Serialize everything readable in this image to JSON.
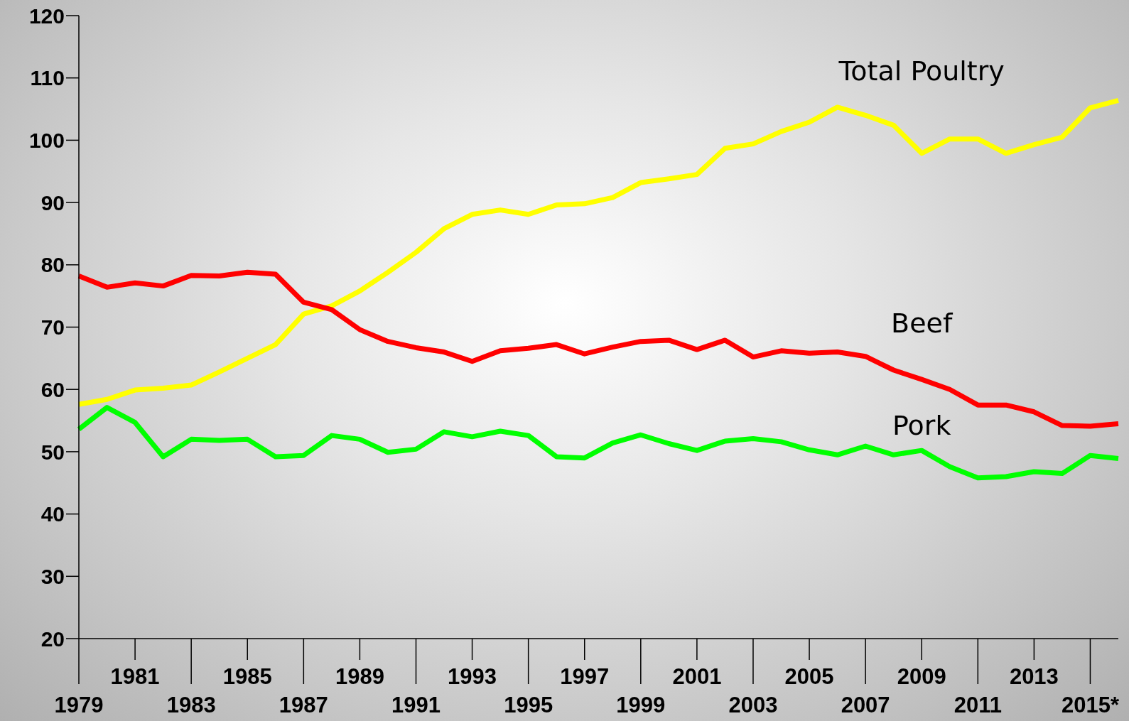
{
  "chart_data": {
    "type": "line",
    "categories": [
      "1979",
      null,
      "1981",
      null,
      "1983",
      null,
      "1985",
      null,
      "1987",
      null,
      "1989",
      null,
      "1991",
      null,
      "1993",
      null,
      "1995",
      null,
      "1997",
      null,
      "1999",
      null,
      "2001",
      null,
      "2003",
      null,
      "2005",
      null,
      "2007",
      null,
      "2009",
      null,
      "2011",
      null,
      "2013",
      null,
      "2015*",
      null
    ],
    "series": [
      {
        "name": "Total Poultry",
        "color": "#ffff00",
        "values": [
          57.6,
          58.4,
          59.9,
          60.2,
          60.7,
          62.8,
          65.0,
          67.2,
          72.1,
          73.4,
          75.8,
          78.8,
          82.0,
          85.8,
          88.1,
          88.8,
          88.1,
          89.6,
          89.8,
          90.8,
          93.2,
          93.8,
          94.5,
          98.7,
          99.4,
          101.4,
          102.9,
          105.3,
          104.0,
          102.4,
          97.9,
          100.2,
          100.2,
          97.9,
          99.3,
          100.5,
          105.2,
          106.4
        ]
      },
      {
        "name": "Beef",
        "color": "#ff0000",
        "values": [
          78.2,
          76.4,
          77.1,
          76.6,
          78.3,
          78.2,
          78.8,
          78.5,
          74.0,
          72.8,
          69.6,
          67.7,
          66.7,
          66.0,
          64.5,
          66.2,
          66.6,
          67.2,
          65.7,
          66.8,
          67.7,
          67.9,
          66.4,
          67.9,
          65.2,
          66.2,
          65.8,
          66.0,
          65.3,
          63.1,
          61.6,
          60.0,
          57.5,
          57.5,
          56.4,
          54.2,
          54.1,
          54.5
        ]
      },
      {
        "name": "Pork",
        "color": "#00ff00",
        "values": [
          53.6,
          57.1,
          54.7,
          49.2,
          52.0,
          51.8,
          52.0,
          49.2,
          49.4,
          52.6,
          52.0,
          49.9,
          50.4,
          53.2,
          52.4,
          53.3,
          52.6,
          49.2,
          49.0,
          51.4,
          52.7,
          51.3,
          50.2,
          51.7,
          52.1,
          51.6,
          50.3,
          49.5,
          50.9,
          49.5,
          50.2,
          47.6,
          45.8,
          46.0,
          46.8,
          46.5,
          49.4,
          48.9
        ]
      }
    ],
    "ylim": [
      20,
      120
    ],
    "yticks": [
      20,
      30,
      40,
      50,
      60,
      70,
      80,
      90,
      100,
      110,
      120
    ],
    "grid": false,
    "legend": false,
    "marker": "none",
    "line_style": "solid"
  }
}
